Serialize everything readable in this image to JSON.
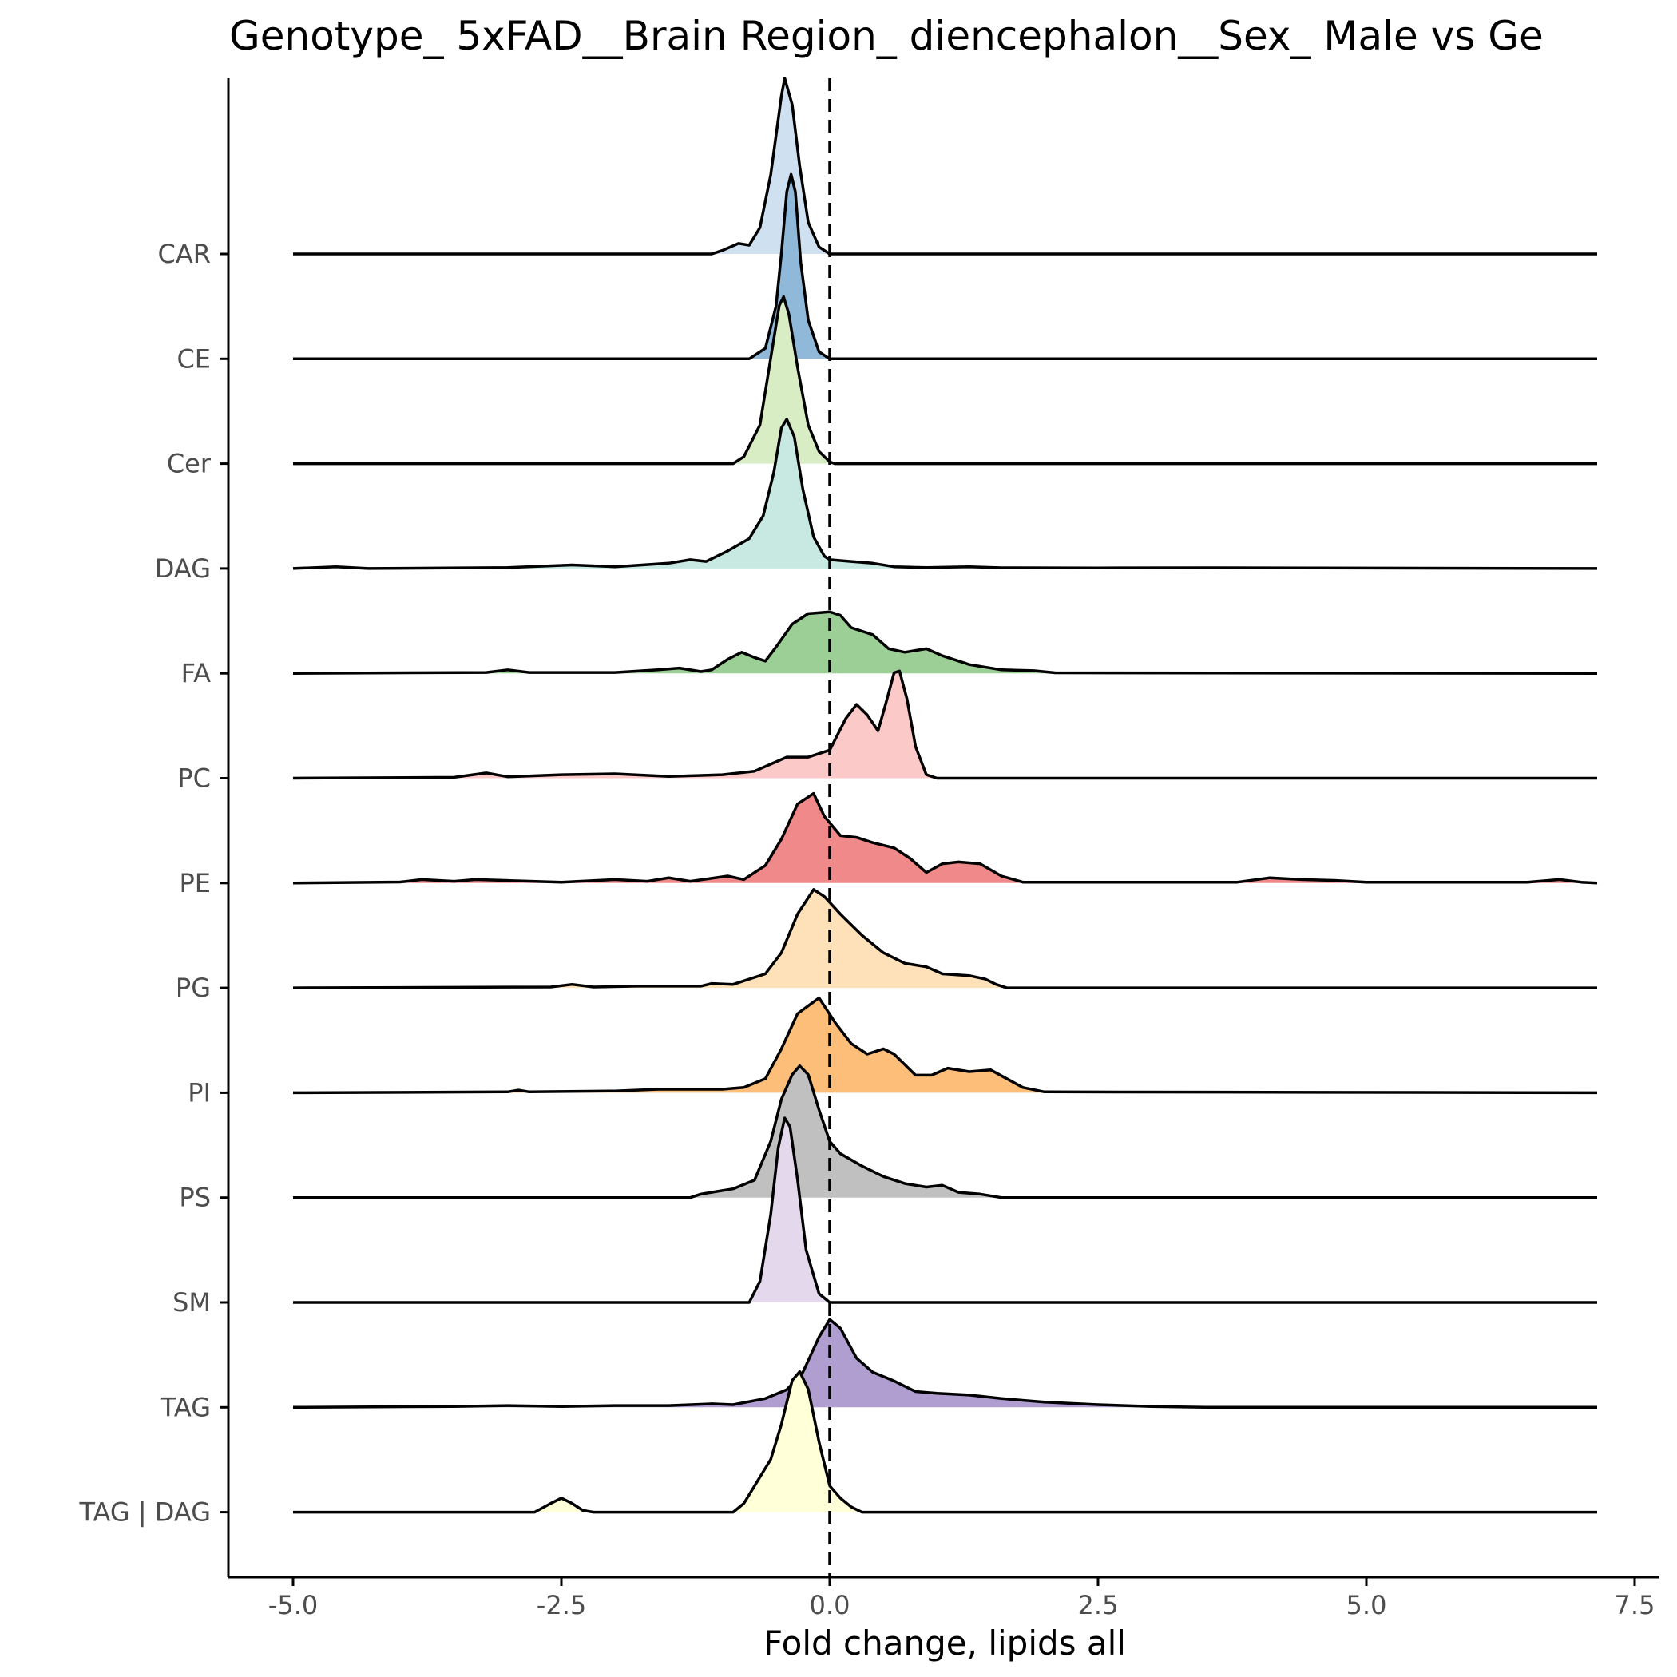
{
  "chart_data": {
    "type": "ridgeline",
    "title": "Genotype_ 5xFAD__Brain Region_ diencephalon__Sex_ Male vs Ge",
    "xlabel": "Fold change, lipids all",
    "ylabel": "",
    "xlim": [
      -5.6,
      7.75
    ],
    "x_ticks": [
      -5.0,
      -2.5,
      0.0,
      2.5,
      5.0,
      7.5
    ],
    "x_tick_labels": [
      "-5.0",
      "-2.5",
      "0.0",
      "2.5",
      "5.0",
      "7.5"
    ],
    "reference_line": {
      "x": 0.0,
      "style": "dashed"
    },
    "grid": false,
    "legend": "none",
    "series": [
      {
        "name": "CAR",
        "color": "#cfe1f1",
        "points": [
          [
            -5.0,
            0
          ],
          [
            -1.1,
            0
          ],
          [
            -1.0,
            0.02
          ],
          [
            -0.85,
            0.06
          ],
          [
            -0.75,
            0.05
          ],
          [
            -0.65,
            0.15
          ],
          [
            -0.55,
            0.45
          ],
          [
            -0.45,
            0.9
          ],
          [
            -0.42,
            1.0
          ],
          [
            -0.35,
            0.85
          ],
          [
            -0.28,
            0.5
          ],
          [
            -0.2,
            0.18
          ],
          [
            -0.1,
            0.04
          ],
          [
            0.0,
            0
          ],
          [
            7.15,
            0
          ]
        ]
      },
      {
        "name": "CE",
        "color": "#8fb8d9",
        "points": [
          [
            -5.0,
            0
          ],
          [
            -0.75,
            0
          ],
          [
            -0.6,
            0.06
          ],
          [
            -0.5,
            0.3
          ],
          [
            -0.45,
            0.6
          ],
          [
            -0.4,
            0.95
          ],
          [
            -0.36,
            1.05
          ],
          [
            -0.32,
            0.95
          ],
          [
            -0.27,
            0.55
          ],
          [
            -0.2,
            0.22
          ],
          [
            -0.1,
            0.04
          ],
          [
            0.0,
            0
          ],
          [
            7.15,
            0
          ]
        ]
      },
      {
        "name": "Cer",
        "color": "#d8edc3",
        "points": [
          [
            -5.0,
            0
          ],
          [
            -0.9,
            0
          ],
          [
            -0.8,
            0.04
          ],
          [
            -0.65,
            0.22
          ],
          [
            -0.55,
            0.6
          ],
          [
            -0.47,
            0.9
          ],
          [
            -0.43,
            0.95
          ],
          [
            -0.38,
            0.85
          ],
          [
            -0.3,
            0.55
          ],
          [
            -0.2,
            0.22
          ],
          [
            -0.1,
            0.07
          ],
          [
            0.0,
            0.01
          ],
          [
            0.05,
            0
          ],
          [
            7.15,
            0
          ]
        ]
      },
      {
        "name": "DAG",
        "color": "#c7e9e2",
        "points": [
          [
            -5.0,
            0
          ],
          [
            -4.6,
            0.01
          ],
          [
            -4.3,
            0
          ],
          [
            -3.0,
            0.005
          ],
          [
            -2.4,
            0.02
          ],
          [
            -2.0,
            0.01
          ],
          [
            -1.5,
            0.03
          ],
          [
            -1.3,
            0.05
          ],
          [
            -1.15,
            0.04
          ],
          [
            -0.95,
            0.1
          ],
          [
            -0.75,
            0.17
          ],
          [
            -0.62,
            0.3
          ],
          [
            -0.52,
            0.55
          ],
          [
            -0.45,
            0.8
          ],
          [
            -0.4,
            0.85
          ],
          [
            -0.33,
            0.75
          ],
          [
            -0.25,
            0.45
          ],
          [
            -0.15,
            0.18
          ],
          [
            -0.05,
            0.07
          ],
          [
            0.0,
            0.05
          ],
          [
            0.2,
            0.04
          ],
          [
            0.4,
            0.03
          ],
          [
            0.6,
            0.01
          ],
          [
            0.9,
            0.005
          ],
          [
            1.3,
            0.01
          ],
          [
            1.6,
            0.004
          ],
          [
            2.5,
            0.003
          ],
          [
            3.5,
            0.004
          ],
          [
            4.5,
            0.003
          ],
          [
            5.5,
            0.002
          ],
          [
            7.15,
            0
          ]
        ]
      },
      {
        "name": "FA",
        "color": "#9bcf96",
        "points": [
          [
            -5.0,
            0
          ],
          [
            -3.2,
            0.005
          ],
          [
            -3.0,
            0.02
          ],
          [
            -2.8,
            0.005
          ],
          [
            -2.0,
            0.005
          ],
          [
            -1.6,
            0.02
          ],
          [
            -1.4,
            0.03
          ],
          [
            -1.2,
            0.01
          ],
          [
            -1.1,
            0.02
          ],
          [
            -0.95,
            0.08
          ],
          [
            -0.82,
            0.12
          ],
          [
            -0.7,
            0.09
          ],
          [
            -0.6,
            0.07
          ],
          [
            -0.5,
            0.15
          ],
          [
            -0.35,
            0.28
          ],
          [
            -0.2,
            0.34
          ],
          [
            0.0,
            0.35
          ],
          [
            0.1,
            0.33
          ],
          [
            0.2,
            0.26
          ],
          [
            0.4,
            0.22
          ],
          [
            0.55,
            0.14
          ],
          [
            0.7,
            0.12
          ],
          [
            0.9,
            0.14
          ],
          [
            1.05,
            0.1
          ],
          [
            1.3,
            0.05
          ],
          [
            1.6,
            0.02
          ],
          [
            1.9,
            0.015
          ],
          [
            2.1,
            0.003
          ],
          [
            7.15,
            0
          ]
        ]
      },
      {
        "name": "PC",
        "color": "#fcc9c9",
        "points": [
          [
            -5.0,
            0
          ],
          [
            -3.5,
            0.005
          ],
          [
            -3.2,
            0.03
          ],
          [
            -3.0,
            0.008
          ],
          [
            -2.5,
            0.02
          ],
          [
            -2.0,
            0.025
          ],
          [
            -1.5,
            0.01
          ],
          [
            -1.0,
            0.02
          ],
          [
            -0.7,
            0.04
          ],
          [
            -0.55,
            0.08
          ],
          [
            -0.4,
            0.12
          ],
          [
            -0.2,
            0.12
          ],
          [
            0.0,
            0.16
          ],
          [
            0.15,
            0.34
          ],
          [
            0.25,
            0.42
          ],
          [
            0.35,
            0.36
          ],
          [
            0.45,
            0.27
          ],
          [
            0.52,
            0.42
          ],
          [
            0.6,
            0.6
          ],
          [
            0.65,
            0.61
          ],
          [
            0.72,
            0.45
          ],
          [
            0.8,
            0.18
          ],
          [
            0.9,
            0.02
          ],
          [
            1.0,
            0
          ],
          [
            7.15,
            0
          ]
        ]
      },
      {
        "name": "PE",
        "color": "#f08a8a",
        "points": [
          [
            -5.0,
            0
          ],
          [
            -4.0,
            0.006
          ],
          [
            -3.8,
            0.02
          ],
          [
            -3.5,
            0.01
          ],
          [
            -3.3,
            0.02
          ],
          [
            -2.5,
            0.005
          ],
          [
            -2.0,
            0.02
          ],
          [
            -1.7,
            0.01
          ],
          [
            -1.5,
            0.03
          ],
          [
            -1.3,
            0.01
          ],
          [
            -0.95,
            0.04
          ],
          [
            -0.8,
            0.02
          ],
          [
            -0.6,
            0.1
          ],
          [
            -0.45,
            0.25
          ],
          [
            -0.3,
            0.45
          ],
          [
            -0.15,
            0.51
          ],
          [
            -0.05,
            0.38
          ],
          [
            0.1,
            0.27
          ],
          [
            0.25,
            0.26
          ],
          [
            0.4,
            0.23
          ],
          [
            0.6,
            0.2
          ],
          [
            0.75,
            0.14
          ],
          [
            0.9,
            0.06
          ],
          [
            1.05,
            0.11
          ],
          [
            1.2,
            0.12
          ],
          [
            1.4,
            0.11
          ],
          [
            1.6,
            0.04
          ],
          [
            1.8,
            0.005
          ],
          [
            3.8,
            0.005
          ],
          [
            4.1,
            0.03
          ],
          [
            4.4,
            0.02
          ],
          [
            4.7,
            0.015
          ],
          [
            5.0,
            0.005
          ],
          [
            6.5,
            0.005
          ],
          [
            6.8,
            0.02
          ],
          [
            7.0,
            0.005
          ],
          [
            7.15,
            0
          ]
        ]
      },
      {
        "name": "PG",
        "color": "#fee1b8",
        "points": [
          [
            -5.0,
            0
          ],
          [
            -2.6,
            0.005
          ],
          [
            -2.4,
            0.02
          ],
          [
            -2.2,
            0.005
          ],
          [
            -1.8,
            0.01
          ],
          [
            -1.2,
            0.01
          ],
          [
            -1.1,
            0.025
          ],
          [
            -0.9,
            0.02
          ],
          [
            -0.6,
            0.08
          ],
          [
            -0.45,
            0.2
          ],
          [
            -0.3,
            0.42
          ],
          [
            -0.15,
            0.56
          ],
          [
            -0.05,
            0.52
          ],
          [
            0.1,
            0.42
          ],
          [
            0.3,
            0.3
          ],
          [
            0.5,
            0.2
          ],
          [
            0.7,
            0.14
          ],
          [
            0.9,
            0.12
          ],
          [
            1.05,
            0.08
          ],
          [
            1.3,
            0.07
          ],
          [
            1.45,
            0.05
          ],
          [
            1.55,
            0.02
          ],
          [
            1.65,
            0
          ],
          [
            7.15,
            0
          ]
        ]
      },
      {
        "name": "PI",
        "color": "#fcbe79",
        "points": [
          [
            -5.0,
            0
          ],
          [
            -3.0,
            0.005
          ],
          [
            -2.9,
            0.015
          ],
          [
            -2.8,
            0.005
          ],
          [
            -2.0,
            0.01
          ],
          [
            -1.6,
            0.02
          ],
          [
            -1.0,
            0.02
          ],
          [
            -0.8,
            0.03
          ],
          [
            -0.6,
            0.08
          ],
          [
            -0.45,
            0.25
          ],
          [
            -0.3,
            0.45
          ],
          [
            -0.1,
            0.54
          ],
          [
            0.05,
            0.4
          ],
          [
            0.2,
            0.28
          ],
          [
            0.35,
            0.22
          ],
          [
            0.5,
            0.25
          ],
          [
            0.6,
            0.22
          ],
          [
            0.8,
            0.1
          ],
          [
            0.95,
            0.1
          ],
          [
            1.1,
            0.14
          ],
          [
            1.3,
            0.12
          ],
          [
            1.5,
            0.13
          ],
          [
            1.65,
            0.08
          ],
          [
            1.8,
            0.03
          ],
          [
            2.0,
            0.005
          ],
          [
            7.15,
            0
          ]
        ]
      },
      {
        "name": "PS",
        "color": "#c0c0c0",
        "points": [
          [
            -5.0,
            0
          ],
          [
            -1.3,
            0
          ],
          [
            -1.2,
            0.02
          ],
          [
            -0.9,
            0.05
          ],
          [
            -0.7,
            0.1
          ],
          [
            -0.55,
            0.32
          ],
          [
            -0.45,
            0.56
          ],
          [
            -0.35,
            0.7
          ],
          [
            -0.28,
            0.75
          ],
          [
            -0.2,
            0.7
          ],
          [
            -0.1,
            0.5
          ],
          [
            0.0,
            0.32
          ],
          [
            0.1,
            0.25
          ],
          [
            0.3,
            0.18
          ],
          [
            0.5,
            0.12
          ],
          [
            0.7,
            0.08
          ],
          [
            0.9,
            0.06
          ],
          [
            1.05,
            0.07
          ],
          [
            1.2,
            0.03
          ],
          [
            1.4,
            0.02
          ],
          [
            1.6,
            0
          ],
          [
            7.15,
            0
          ]
        ]
      },
      {
        "name": "SM",
        "color": "#e3d8ec",
        "points": [
          [
            -5.0,
            0
          ],
          [
            -0.75,
            0
          ],
          [
            -0.65,
            0.12
          ],
          [
            -0.55,
            0.5
          ],
          [
            -0.48,
            0.88
          ],
          [
            -0.42,
            1.05
          ],
          [
            -0.37,
            1.0
          ],
          [
            -0.3,
            0.7
          ],
          [
            -0.22,
            0.3
          ],
          [
            -0.1,
            0.05
          ],
          [
            0.0,
            0
          ],
          [
            7.15,
            0
          ]
        ]
      },
      {
        "name": "TAG",
        "color": "#b09ed0",
        "points": [
          [
            -5.0,
            0
          ],
          [
            -3.5,
            0.005
          ],
          [
            -3.0,
            0.01
          ],
          [
            -2.5,
            0.005
          ],
          [
            -2.0,
            0.01
          ],
          [
            -1.5,
            0.01
          ],
          [
            -1.1,
            0.02
          ],
          [
            -0.9,
            0.015
          ],
          [
            -0.6,
            0.05
          ],
          [
            -0.4,
            0.1
          ],
          [
            -0.25,
            0.2
          ],
          [
            -0.1,
            0.4
          ],
          [
            0.0,
            0.5
          ],
          [
            0.1,
            0.45
          ],
          [
            0.25,
            0.28
          ],
          [
            0.4,
            0.2
          ],
          [
            0.6,
            0.15
          ],
          [
            0.8,
            0.09
          ],
          [
            1.0,
            0.08
          ],
          [
            1.3,
            0.07
          ],
          [
            1.6,
            0.05
          ],
          [
            2.0,
            0.03
          ],
          [
            2.5,
            0.015
          ],
          [
            3.0,
            0.005
          ],
          [
            3.5,
            0
          ],
          [
            7.15,
            0
          ]
        ]
      },
      {
        "name": "TAG | DAG",
        "color": "#ffffd8",
        "points": [
          [
            -5.0,
            0
          ],
          [
            -2.75,
            0
          ],
          [
            -2.6,
            0.05
          ],
          [
            -2.5,
            0.08
          ],
          [
            -2.4,
            0.05
          ],
          [
            -2.3,
            0.01
          ],
          [
            -2.2,
            0
          ],
          [
            -0.9,
            0
          ],
          [
            -0.8,
            0.05
          ],
          [
            -0.65,
            0.2
          ],
          [
            -0.55,
            0.3
          ],
          [
            -0.45,
            0.5
          ],
          [
            -0.35,
            0.75
          ],
          [
            -0.28,
            0.8
          ],
          [
            -0.2,
            0.7
          ],
          [
            -0.1,
            0.4
          ],
          [
            0.0,
            0.15
          ],
          [
            0.1,
            0.08
          ],
          [
            0.2,
            0.03
          ],
          [
            0.3,
            0
          ],
          [
            7.15,
            0
          ]
        ]
      }
    ]
  }
}
